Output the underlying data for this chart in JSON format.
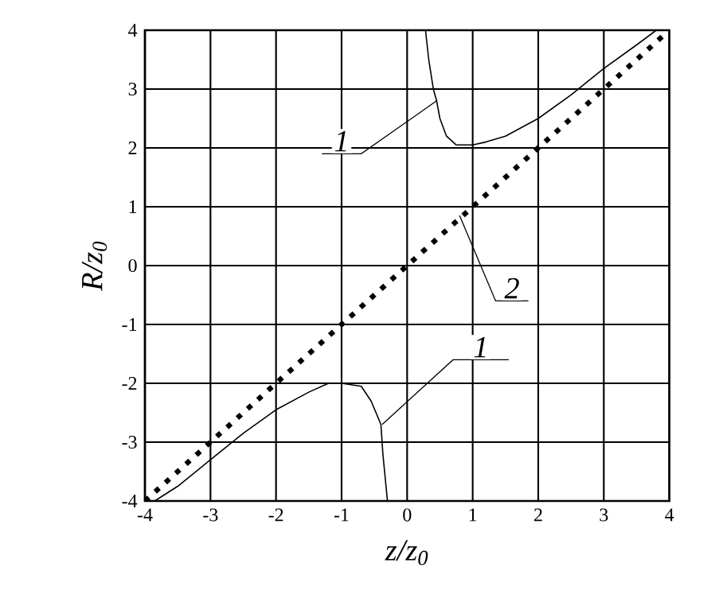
{
  "chart_data": {
    "type": "line",
    "xlabel": "z/z$_{0}$",
    "ylabel": "R/z$_{0}$",
    "xlim": [
      -4,
      4
    ],
    "ylim": [
      -4,
      4
    ],
    "xticks": [
      -4,
      -3,
      -2,
      -1,
      0,
      1,
      2,
      3,
      4
    ],
    "yticks": [
      -4,
      -3,
      -2,
      -1,
      0,
      1,
      2,
      3,
      4
    ],
    "grid": true,
    "marker": "none",
    "series": [
      {
        "color": "#000000",
        "line_style": "solid",
        "x": [
          0.28,
          0.33,
          0.4,
          0.45,
          0.5,
          0.6,
          0.75,
          1.0,
          1.2,
          1.5,
          2.0,
          2.5,
          3.0,
          3.5,
          3.8
        ],
        "values": [
          4.0,
          3.5,
          3.0,
          2.8,
          2.5,
          2.2,
          2.05,
          2.05,
          2.1,
          2.2,
          2.5,
          2.9,
          3.35,
          3.75,
          4.0
        ]
      },
      {
        "color": "#000000",
        "line_style": "solid",
        "x": [
          -3.85,
          -3.5,
          -3.0,
          -2.5,
          -2.0,
          -1.5,
          -1.2,
          -1.0,
          -0.7,
          -0.55,
          -0.4,
          -0.37,
          -0.3
        ],
        "values": [
          -4.0,
          -3.75,
          -3.3,
          -2.85,
          -2.45,
          -2.15,
          -2.0,
          -2.0,
          -2.05,
          -2.3,
          -2.7,
          -3.2,
          -4.0
        ]
      },
      {
        "color": "#000000",
        "line_style": "dotted",
        "x": [
          -4.0,
          3.9
        ],
        "values": [
          -4.0,
          3.9
        ]
      }
    ],
    "annotations": [
      {
        "text": "1",
        "x": 0.45,
        "y": 2.8
      },
      {
        "text": "1",
        "x": -0.38,
        "y": -2.7
      },
      {
        "text": "2",
        "x": 0.8,
        "y": 0.85
      }
    ]
  }
}
